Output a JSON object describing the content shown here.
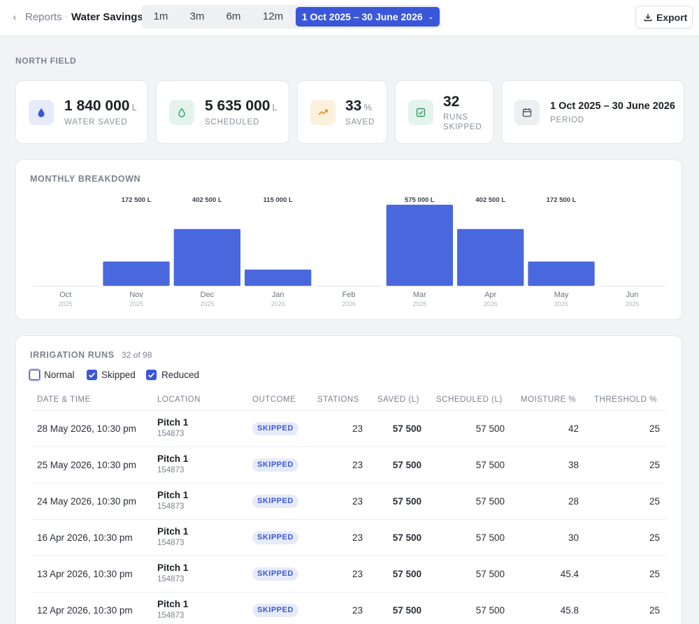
{
  "header": {
    "breadcrumb_parent": "Reports",
    "breadcrumb_sep": "·",
    "title": "Water Savings",
    "ranges": [
      "1m",
      "3m",
      "6m",
      "12m"
    ],
    "selected_range": "1 Oct 2025 – 30 June 2026",
    "export_label": "Export"
  },
  "section": "NORTH FIELD",
  "stats": {
    "water_saved": {
      "value": "1 840 000",
      "unit": "L",
      "label": "WATER SAVED"
    },
    "scheduled": {
      "value": "5 635 000",
      "unit": "L",
      "label": "SCHEDULED"
    },
    "saved_pct": {
      "value": "33",
      "unit": "%",
      "label": "SAVED"
    },
    "runs_skipped": {
      "value": "32",
      "label_line1": "RUNS",
      "label_line2": "SKIPPED"
    },
    "period": {
      "value": "1 Oct 2025 – 30 June 2026",
      "label": "PERIOD"
    }
  },
  "chart_data": {
    "type": "bar",
    "title": "MONTHLY BREAKDOWN",
    "categories": [
      "Oct",
      "Nov",
      "Dec",
      "Jan",
      "Feb",
      "Mar",
      "Apr",
      "May",
      "Jun"
    ],
    "years": [
      "2025",
      "2025",
      "2025",
      "2026",
      "2026",
      "2026",
      "2026",
      "2026",
      "2026"
    ],
    "values": [
      0,
      172500,
      402500,
      115000,
      0,
      575000,
      402500,
      172500,
      0
    ],
    "data_labels": [
      "",
      "172 500 L",
      "402 500 L",
      "115 000 L",
      "",
      "575 000 L",
      "402 500 L",
      "172 500 L",
      ""
    ],
    "ylim": [
      0,
      575000
    ],
    "bar_color": "#4a68de",
    "grid": false
  },
  "runs": {
    "title": "IRRIGATION RUNS",
    "count": "32 of 98",
    "filters": [
      {
        "label": "Normal",
        "checked": false
      },
      {
        "label": "Skipped",
        "checked": true
      },
      {
        "label": "Reduced",
        "checked": true
      }
    ],
    "columns": [
      "DATE & TIME",
      "LOCATION",
      "OUTCOME",
      "STATIONS",
      "SAVED (L)",
      "SCHEDULED (L)",
      "MOISTURE %",
      "THRESHOLD %"
    ],
    "rows": [
      {
        "date": "28 May 2026, 10:30 pm",
        "location": "Pitch 1",
        "location_id": "154873",
        "outcome": "SKIPPED",
        "stations": "23",
        "saved": "57 500",
        "scheduled": "57 500",
        "moisture": "42",
        "threshold": "25"
      },
      {
        "date": "25 May 2026, 10:30 pm",
        "location": "Pitch 1",
        "location_id": "154873",
        "outcome": "SKIPPED",
        "stations": "23",
        "saved": "57 500",
        "scheduled": "57 500",
        "moisture": "38",
        "threshold": "25"
      },
      {
        "date": "24 May 2026, 10:30 pm",
        "location": "Pitch 1",
        "location_id": "154873",
        "outcome": "SKIPPED",
        "stations": "23",
        "saved": "57 500",
        "scheduled": "57 500",
        "moisture": "28",
        "threshold": "25"
      },
      {
        "date": "16 Apr 2026, 10:30 pm",
        "location": "Pitch 1",
        "location_id": "154873",
        "outcome": "SKIPPED",
        "stations": "23",
        "saved": "57 500",
        "scheduled": "57 500",
        "moisture": "30",
        "threshold": "25"
      },
      {
        "date": "13 Apr 2026, 10:30 pm",
        "location": "Pitch 1",
        "location_id": "154873",
        "outcome": "SKIPPED",
        "stations": "23",
        "saved": "57 500",
        "scheduled": "57 500",
        "moisture": "45.4",
        "threshold": "25"
      },
      {
        "date": "12 Apr 2026, 10:30 pm",
        "location": "Pitch 1",
        "location_id": "154873",
        "outcome": "SKIPPED",
        "stations": "23",
        "saved": "57 500",
        "scheduled": "57 500",
        "moisture": "45.8",
        "threshold": "25"
      }
    ]
  }
}
